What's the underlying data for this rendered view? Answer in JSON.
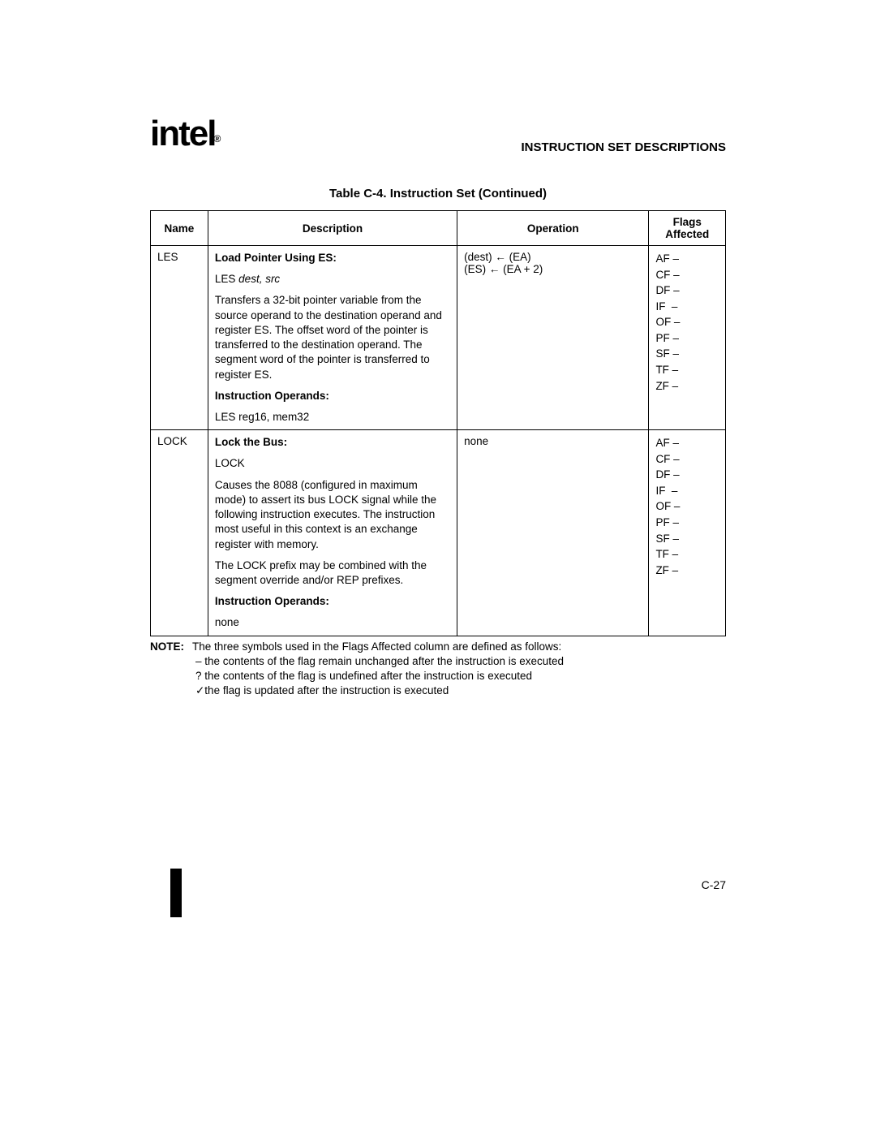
{
  "header": {
    "logo_main": "int",
    "logo_e": "e",
    "logo_l": "l",
    "logo_sub": "®",
    "section_title": "INSTRUCTION SET DESCRIPTIONS"
  },
  "table": {
    "caption": "Table C-4.  Instruction Set (Continued)",
    "columns": [
      "Name",
      "Description",
      "Operation",
      "Flags Affected"
    ],
    "rows": [
      {
        "name": "LES",
        "desc_title": "Load Pointer Using ES",
        "desc_syntax_prefix": "LES ",
        "desc_syntax_italic": "dest, src",
        "desc_body": "Transfers a 32-bit pointer variable from the source operand to the destination operand and register ES. The offset word of the pointer is transferred to the destination operand. The segment word of the pointer is transferred to register ES.",
        "desc_operands_label": "Instruction Operands",
        "desc_operands": "LES reg16, mem32",
        "operation_lines": [
          "(dest) ← (EA)",
          "(ES) ← (EA + 2)"
        ],
        "flags": [
          "AF –",
          "CF –",
          "DF –",
          "IF  –",
          "OF –",
          "PF –",
          "SF –",
          "TF –",
          "ZF –"
        ]
      },
      {
        "name": "LOCK",
        "desc_title": "Lock the Bus",
        "desc_syntax_prefix": "LOCK",
        "desc_syntax_italic": "",
        "desc_body": "Causes the 8088 (configured in maximum mode) to assert its bus LOCK signal while the following instruction executes. The instruction most useful in this context is an exchange register with memory.",
        "desc_body2": "The LOCK prefix may be combined with the segment override and/or REP prefixes.",
        "desc_operands_label": "Instruction Operands",
        "desc_operands": "none",
        "operation_lines": [
          "none"
        ],
        "flags": [
          "AF –",
          "CF –",
          "DF –",
          "IF  –",
          "OF –",
          "PF –",
          "SF –",
          "TF –",
          "ZF –"
        ]
      }
    ]
  },
  "note": {
    "label": "NOTE:",
    "line1": "The three symbols used in the Flags Affected column are defined as follows:",
    "line2": "– the contents of the flag remain unchanged after the instruction is executed",
    "line3": "? the contents of the flag is undefined after the instruction is executed",
    "line4": "✓the flag is updated after the instruction is executed"
  },
  "page_number": "C-27"
}
